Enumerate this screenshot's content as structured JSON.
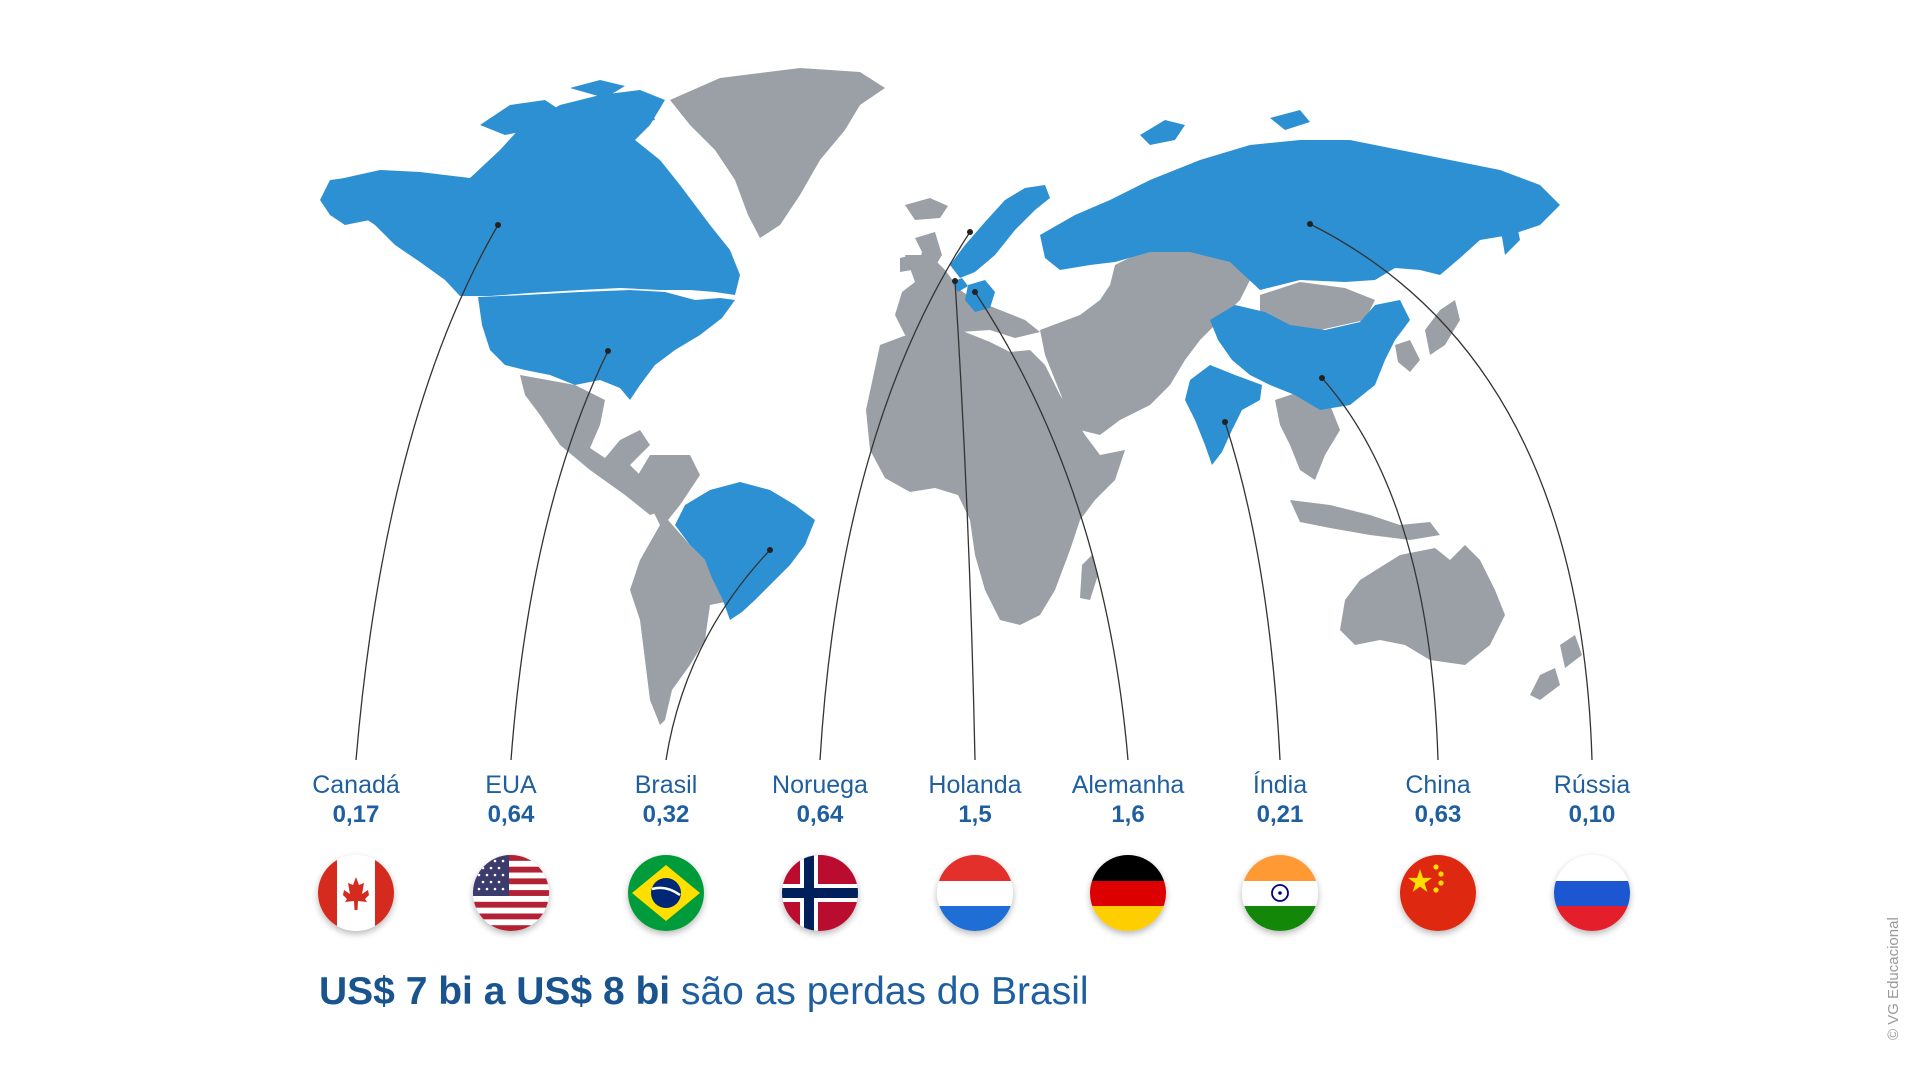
{
  "colors": {
    "highlight": "#2d90d2",
    "land": "#9aa0a5",
    "text": "#1f5fa0",
    "line": "#333333"
  },
  "countries": [
    {
      "id": "canada",
      "name": "Canadá",
      "value": "0,17",
      "flag": "canada-flag-icon"
    },
    {
      "id": "eua",
      "name": "EUA",
      "value": "0,64",
      "flag": "usa-flag-icon"
    },
    {
      "id": "brasil",
      "name": "Brasil",
      "value": "0,32",
      "flag": "brazil-flag-icon"
    },
    {
      "id": "noruega",
      "name": "Noruega",
      "value": "0,64",
      "flag": "norway-flag-icon"
    },
    {
      "id": "holanda",
      "name": "Holanda",
      "value": "1,5",
      "flag": "netherlands-flag-icon"
    },
    {
      "id": "alemanha",
      "name": "Alemanha",
      "value": "1,6",
      "flag": "germany-flag-icon"
    },
    {
      "id": "india",
      "name": "Índia",
      "value": "0,21",
      "flag": "india-flag-icon"
    },
    {
      "id": "china",
      "name": "China",
      "value": "0,63",
      "flag": "china-flag-icon"
    },
    {
      "id": "russia",
      "name": "Rússia",
      "value": "0,10",
      "flag": "russia-flag-icon"
    }
  ],
  "headline": {
    "bold": "US$ 7 bi a US$ 8 bi",
    "regular": "são as perdas do Brasil"
  },
  "copyright": "© VG Educacional"
}
